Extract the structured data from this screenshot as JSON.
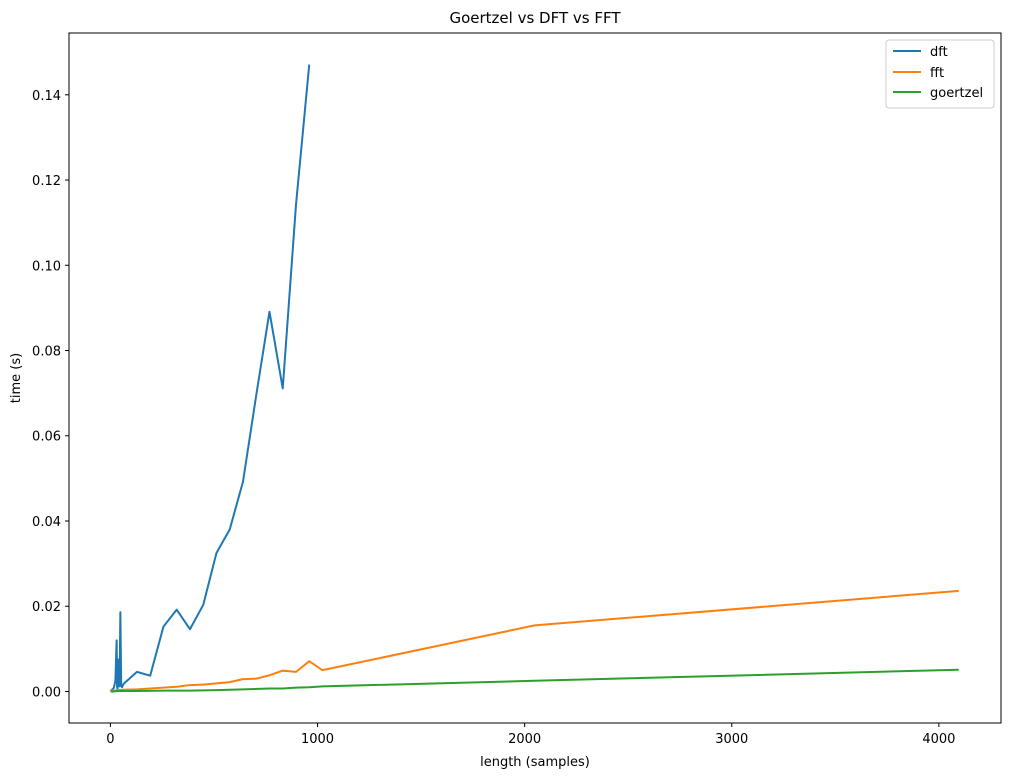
{
  "chart_data": {
    "type": "line",
    "title": "Goertzel vs DFT vs FFT",
    "xlabel": "length (samples)",
    "ylabel": "time (s)",
    "xlim": [
      -200,
      4300
    ],
    "ylim": [
      -0.0074,
      0.1545
    ],
    "xticks": [
      0,
      1000,
      2000,
      3000,
      4000
    ],
    "xtick_labels": [
      "0",
      "1000",
      "2000",
      "3000",
      "4000"
    ],
    "yticks": [
      0.0,
      0.02,
      0.04,
      0.06,
      0.08,
      0.1,
      0.12,
      0.14
    ],
    "ytick_labels": [
      "0.00",
      "0.02",
      "0.04",
      "0.06",
      "0.08",
      "0.10",
      "0.12",
      "0.14"
    ],
    "grid": false,
    "legend_position": "top-right",
    "series": [
      {
        "name": "dft",
        "color": "#1f77b4",
        "x": [
          1,
          2,
          4,
          8,
          16,
          24,
          30,
          32,
          34,
          38,
          40,
          44,
          48,
          52,
          56,
          64,
          128,
          192,
          256,
          320,
          384,
          448,
          512,
          576,
          640,
          704,
          768,
          832,
          896,
          960
        ],
        "y": [
          0.0,
          0.0001,
          0.0002,
          0.0004,
          0.0008,
          0.0025,
          0.012,
          0.0012,
          0.0006,
          0.0025,
          0.0075,
          0.0012,
          0.0186,
          0.0014,
          0.001,
          0.0018,
          0.0046,
          0.0037,
          0.0152,
          0.0192,
          0.0146,
          0.0203,
          0.0325,
          0.038,
          0.0492,
          0.0695,
          0.0891,
          0.0711,
          0.1142,
          0.1471
        ]
      },
      {
        "name": "fft",
        "color": "#ff7f0e",
        "x": [
          1,
          2,
          4,
          8,
          16,
          32,
          64,
          128,
          192,
          256,
          320,
          384,
          448,
          512,
          576,
          640,
          704,
          768,
          832,
          896,
          960,
          1024,
          2048,
          4096
        ],
        "y": [
          0.0,
          0.0001,
          0.0001,
          0.0002,
          0.0002,
          0.0003,
          0.0004,
          0.0005,
          0.0007,
          0.0009,
          0.0011,
          0.0015,
          0.0016,
          0.0019,
          0.0022,
          0.0029,
          0.003,
          0.0038,
          0.0049,
          0.0046,
          0.0071,
          0.005,
          0.0155,
          0.0236
        ]
      },
      {
        "name": "goertzel",
        "color": "#2ca02c",
        "x": [
          1,
          2,
          4,
          8,
          16,
          32,
          64,
          128,
          256,
          384,
          512,
          640,
          768,
          832,
          896,
          960,
          1024,
          2048,
          4096
        ],
        "y": [
          0.0,
          0.0,
          0.0,
          0.0,
          0.0,
          0.0001,
          0.0001,
          0.0001,
          0.0002,
          0.0002,
          0.0003,
          0.0005,
          0.0007,
          0.0007,
          0.0009,
          0.001,
          0.0012,
          0.0025,
          0.0051
        ]
      }
    ]
  }
}
